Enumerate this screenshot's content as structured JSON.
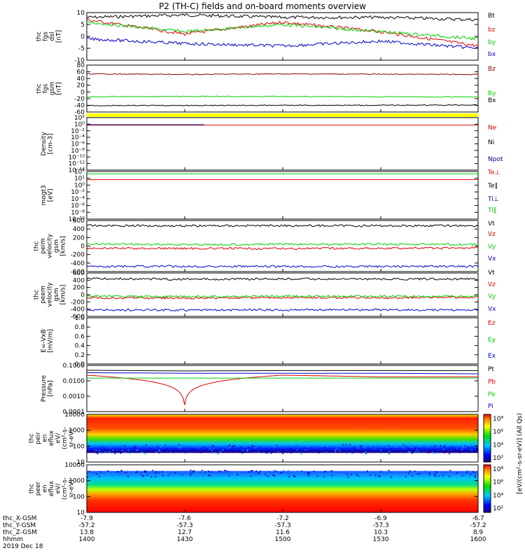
{
  "title": "P2 (TH-C) fields and on-board moments overview",
  "date_label": "2019 Dec 18",
  "colors": {
    "black": "#000000",
    "red": "#e00000",
    "green": "#00d000",
    "blue": "#0000d0",
    "darkred": "#8b0000",
    "navy": "#000080",
    "yellow": "#ffff00"
  },
  "chart_data": [
    {
      "type": "line",
      "panel": "fgs_dsl",
      "ylabel": [
        "thc",
        "fgs",
        "dsl",
        "[nT]"
      ],
      "ylim": [
        -10,
        10
      ],
      "yticks": [
        "10",
        "5",
        "0",
        "-5",
        "-10"
      ],
      "x": [
        "1400",
        "1430",
        "1500",
        "1530",
        "1600"
      ],
      "series": [
        {
          "name": "Bt",
          "color": "black",
          "values": [
            8,
            9,
            8,
            8,
            7
          ]
        },
        {
          "name": "bz",
          "color": "red",
          "values": [
            7,
            1,
            6,
            2,
            -4
          ]
        },
        {
          "name": "by",
          "color": "green",
          "values": [
            6,
            2,
            5,
            2,
            -1
          ]
        },
        {
          "name": "bx",
          "color": "blue",
          "values": [
            -1,
            -3,
            -4,
            -2,
            -5
          ]
        }
      ]
    },
    {
      "type": "line",
      "panel": "fgs_gsm",
      "ylabel": [
        "thc",
        "fgs",
        "gsm",
        "[nT]"
      ],
      "ylim": [
        -70,
        90
      ],
      "yticks": [
        "80",
        "60",
        "40",
        "20",
        "0",
        "-20",
        "-40",
        "-60"
      ],
      "series": [
        {
          "name": "Bz",
          "color": "darkred",
          "values": [
            60,
            58,
            60,
            59,
            58
          ]
        },
        {
          "name": "By",
          "color": "green",
          "values": [
            -18,
            -17,
            -17,
            -18,
            -19
          ]
        },
        {
          "name": "Bx",
          "color": "black",
          "values": [
            -48,
            -48,
            -47,
            -47,
            -46
          ]
        }
      ]
    },
    {
      "type": "line",
      "panel": "density",
      "ylabel": [
        "Density",
        "[cm-3]"
      ],
      "scale": "log",
      "ylim": [
        1e-14,
        100
      ],
      "yticks": [
        "10²",
        "10⁰",
        "10⁻²",
        "10⁻⁴",
        "10⁻⁶",
        "10⁻⁸",
        "10⁻¹⁰",
        "10⁻¹²",
        "10⁻¹⁴"
      ],
      "series": [
        {
          "name": "Ne",
          "color": "red",
          "values": [
            0.5,
            0.5,
            0.5,
            0.5,
            0.5
          ]
        },
        {
          "name": "Ni",
          "color": "black",
          "values": []
        },
        {
          "name": "Npot",
          "color": "navy",
          "values": [
            0.7,
            0.7
          ]
        }
      ]
    },
    {
      "type": "line",
      "panel": "temperature",
      "ylabel": [
        "mogt3",
        "[eV]"
      ],
      "scale": "log",
      "ylim": [
        1e-10,
        10000.0
      ],
      "yticks": [
        "10⁴",
        "10²",
        "10⁰",
        "10⁻²",
        "10⁻⁴",
        "10⁻⁶",
        "10⁻⁸",
        "10⁻¹⁰"
      ],
      "series": [
        {
          "name": "Te⊥",
          "color": "red",
          "values": [
            40,
            40,
            40,
            40,
            40
          ]
        },
        {
          "name": "Te∥",
          "color": "black",
          "values": []
        },
        {
          "name": "Ti⊥",
          "color": "navy",
          "values": []
        },
        {
          "name": "Ti∥",
          "color": "green",
          "values": [
            2000,
            2000,
            2000,
            2000,
            2000
          ]
        }
      ]
    },
    {
      "type": "line",
      "panel": "peim_velocity",
      "ylabel": [
        "thc",
        "peim",
        "velocity",
        "gsm",
        "[km/s]"
      ],
      "ylim": [
        -700,
        700
      ],
      "yticks": [
        "600",
        "400",
        "200",
        "0",
        "-200",
        "-400",
        "-600"
      ],
      "series": [
        {
          "name": "Vt",
          "color": "black",
          "values": [
            560,
            555,
            560,
            555,
            560
          ]
        },
        {
          "name": "Vz",
          "color": "red",
          "values": [
            -60,
            -65,
            -70,
            -60,
            -55
          ]
        },
        {
          "name": "Vy",
          "color": "green",
          "values": [
            60,
            40,
            50,
            50,
            40
          ]
        },
        {
          "name": "Vx",
          "color": "blue",
          "values": [
            -560,
            -555,
            -560,
            -560,
            -555
          ]
        }
      ]
    },
    {
      "type": "line",
      "panel": "peem_velocity",
      "ylabel": [
        "thc",
        "peem",
        "velocity",
        "gsm",
        "[km/s]"
      ],
      "ylim": [
        -700,
        700
      ],
      "yticks": [
        "600",
        "400",
        "200",
        "0",
        "-200",
        "-400",
        "-600"
      ],
      "series": [
        {
          "name": "Vt",
          "color": "black",
          "values": [
            520,
            500,
            510,
            500,
            510
          ]
        },
        {
          "name": "Vz",
          "color": "red",
          "values": [
            -100,
            -110,
            -90,
            -100,
            -80
          ]
        },
        {
          "name": "Vy",
          "color": "green",
          "values": [
            -60,
            -60,
            -50,
            -50,
            -60
          ]
        },
        {
          "name": "Vx",
          "color": "blue",
          "values": [
            -490,
            -495,
            -490,
            -490,
            -495
          ]
        }
      ]
    },
    {
      "type": "line",
      "panel": "efield",
      "ylabel": [
        "E=-VxB",
        "[mV/m]"
      ],
      "ylim": [
        0,
        1
      ],
      "yticks": [
        "1.0",
        "0.8",
        "0.6",
        "0.4",
        "0.2",
        "0.0"
      ],
      "series": [
        {
          "name": "Ez",
          "color": "red",
          "values": []
        },
        {
          "name": "Ey",
          "color": "green",
          "values": []
        },
        {
          "name": "Ex",
          "color": "blue",
          "values": []
        }
      ]
    },
    {
      "type": "line",
      "panel": "pressure",
      "ylabel": [
        "Pressure",
        "[nPa]"
      ],
      "scale": "log",
      "ylim": [
        0.0001,
        0.2
      ],
      "yticks": [
        "0.1000",
        "0.0100",
        "0.0010",
        "0.0001"
      ],
      "series": [
        {
          "name": "Pt",
          "color": "black",
          "values": [
            0.09,
            0.08,
            0.085,
            0.085,
            0.085
          ]
        },
        {
          "name": "Pb",
          "color": "red",
          "values": [
            0.04,
            0.0003,
            0.04,
            0.03,
            0.03
          ]
        },
        {
          "name": "Pe",
          "color": "green",
          "values": [
            0.025,
            0.025,
            0.025,
            0.025,
            0.025
          ]
        },
        {
          "name": "Pi",
          "color": "blue",
          "values": [
            0.06,
            0.055,
            0.055,
            0.055,
            0.05
          ]
        }
      ]
    },
    {
      "type": "heatmap",
      "panel": "peir_eflux",
      "ylabel": [
        "thc",
        "peir",
        "en",
        "eflux",
        "eV/",
        "(cm²-s-",
        "sr-eV)"
      ],
      "scale": "log",
      "ylim": [
        5,
        30000
      ],
      "yticks": [
        "10000",
        "1000",
        "100",
        "10"
      ]
    },
    {
      "type": "heatmap",
      "panel": "peer_eflux",
      "ylabel": [
        "thc",
        "peer",
        "en",
        "eflux",
        "eV/",
        "(cm²-s-",
        "sr-eV)"
      ],
      "scale": "log",
      "ylim": [
        5,
        30000
      ],
      "yticks": [
        "10000",
        "1000",
        "100",
        "10"
      ]
    }
  ],
  "colorbar": {
    "label": "[eV/(cm²-s-sr-eV)] (All Qs)",
    "ticks_top": [
      "10⁸",
      "10⁶",
      "10⁴",
      "10²"
    ],
    "ticks_bottom": [
      "10⁸",
      "10⁶",
      "10⁴",
      "10²"
    ]
  },
  "time_axis": {
    "row_labels": [
      "thc_X-GSM",
      "thc_Y-GSM",
      "thc_Z-GSM",
      "hhmm"
    ],
    "columns": [
      {
        "values": [
          "-7.9",
          "-57.2",
          "13.8",
          "1400"
        ]
      },
      {
        "values": [
          "-7.6",
          "-57.3",
          "12.7",
          "1430"
        ]
      },
      {
        "values": [
          "-7.2",
          "-57.3",
          "11.6",
          "1500"
        ]
      },
      {
        "values": [
          "-6.9",
          "-57.3",
          "10.3",
          "1530"
        ]
      },
      {
        "values": [
          "-6.7",
          "-57.2",
          "8.9",
          "1600"
        ]
      }
    ]
  }
}
